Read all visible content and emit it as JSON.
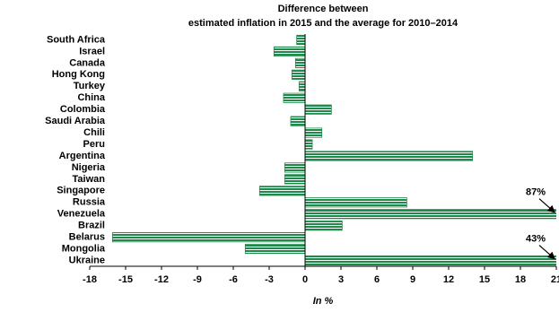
{
  "chart_data": {
    "type": "barh",
    "title": [
      "Difference between",
      "estimated inflation in 2015 and the average for 2010–2014"
    ],
    "x_label": "In %",
    "categories": [
      "South Africa",
      "Israel",
      "Canada",
      "Hong Kong",
      "Turkey",
      "China",
      "Colombia",
      "Saudi Arabia",
      "Chili",
      "Peru",
      "Argentina",
      "Nigeria",
      "Taiwan",
      "Singapore",
      "Russia",
      "Venezuela",
      "Brazil",
      "Belarus",
      "Mongolia",
      "Ukraine"
    ],
    "values": [
      -0.7,
      -2.6,
      -0.8,
      -1.1,
      -0.5,
      -1.8,
      2.2,
      -1.2,
      1.4,
      0.6,
      14.0,
      -1.7,
      -1.7,
      -3.8,
      8.5,
      87,
      3.1,
      -16.1,
      -5.0,
      43
    ],
    "value_labels": [
      null,
      null,
      null,
      null,
      null,
      null,
      null,
      null,
      null,
      null,
      null,
      null,
      null,
      null,
      null,
      "87%",
      null,
      null,
      null,
      "43%"
    ],
    "color": "#1e8a4a",
    "xlim": [
      -18,
      21
    ],
    "xticks": [
      -18,
      -15,
      -12,
      -9,
      -6,
      -3,
      0,
      3,
      6,
      9,
      12,
      15,
      18,
      21
    ]
  }
}
